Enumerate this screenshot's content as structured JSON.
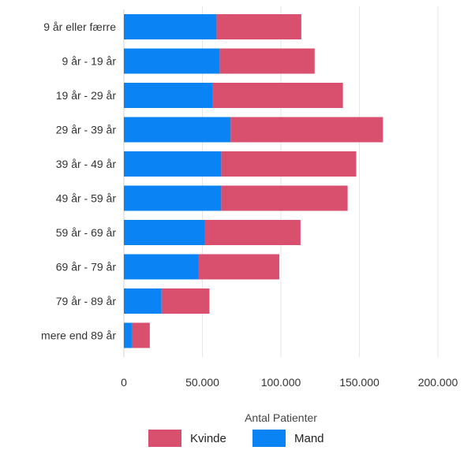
{
  "chart_data": {
    "type": "bar",
    "orientation": "horizontal",
    "stacked": true,
    "categories": [
      "9  år eller færre",
      "9  år - 19  år",
      "19  år - 29  år",
      "29  år - 39  år",
      "39  år - 49  år",
      "49  år - 59  år",
      "59  år - 69  år",
      "69  år - 79  år",
      "79  år - 89  år",
      "mere end 89  år"
    ],
    "series": [
      {
        "name": "Mand",
        "color": "#0a84f5",
        "values": [
          59000,
          61000,
          56500,
          68000,
          62000,
          62000,
          51500,
          47500,
          24000,
          5000
        ]
      },
      {
        "name": "Kvinde",
        "color": "#d94f6e",
        "values": [
          54000,
          60500,
          83000,
          97000,
          86000,
          80500,
          61000,
          51500,
          30500,
          11500
        ]
      }
    ],
    "xlabel": "Antal Patienter",
    "ylabel": "",
    "xlim": [
      0,
      200000
    ],
    "xticks": [
      "0",
      "50.000",
      "100.000",
      "150.000",
      "200.000"
    ],
    "grid": true,
    "legend": {
      "placement": "bottom-center",
      "entries": [
        "Kvinde",
        "Mand"
      ]
    }
  }
}
